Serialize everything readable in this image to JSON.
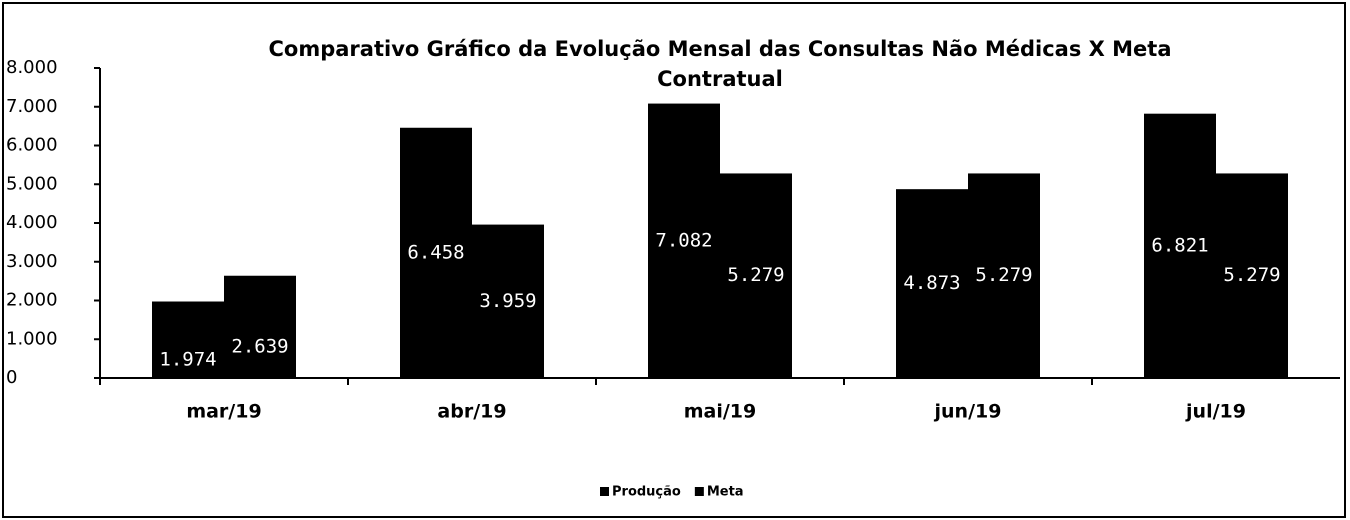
{
  "chart_data": {
    "type": "bar",
    "title": [
      "Comparativo Gráfico da Evolução Mensal das Consultas Não Médicas X Meta",
      "Contratual"
    ],
    "categories": [
      "mar/19",
      "abr/19",
      "mai/19",
      "jun/19",
      "jul/19"
    ],
    "series": [
      {
        "name": "Produção",
        "color": "#000000",
        "values": [
          1974,
          6458,
          7082,
          4873,
          6821
        ],
        "value_labels": [
          "1.974",
          "6.458",
          "7.082",
          "4.873",
          "6.821"
        ]
      },
      {
        "name": "Meta",
        "color": "#000000",
        "values": [
          2639,
          3959,
          5279,
          5279,
          5279
        ],
        "value_labels": [
          "2.639",
          "3.959",
          "5.279",
          "5.279",
          "5.279"
        ]
      }
    ],
    "ylim": [
      0,
      8000
    ],
    "yticks": [
      0,
      {
        "value": 1000,
        "label": "1.000"
      },
      {
        "value": 2000,
        "label": "2.000"
      },
      {
        "value": 3000,
        "label": "3.000"
      },
      {
        "value": 4000,
        "label": "4.000"
      },
      {
        "value": 5000,
        "label": "5.000"
      },
      {
        "value": 6000,
        "label": "6.000"
      },
      {
        "value": 7000,
        "label": "7.000"
      },
      {
        "value": 8000,
        "label": "8.000"
      }
    ],
    "legend": "bottom"
  }
}
